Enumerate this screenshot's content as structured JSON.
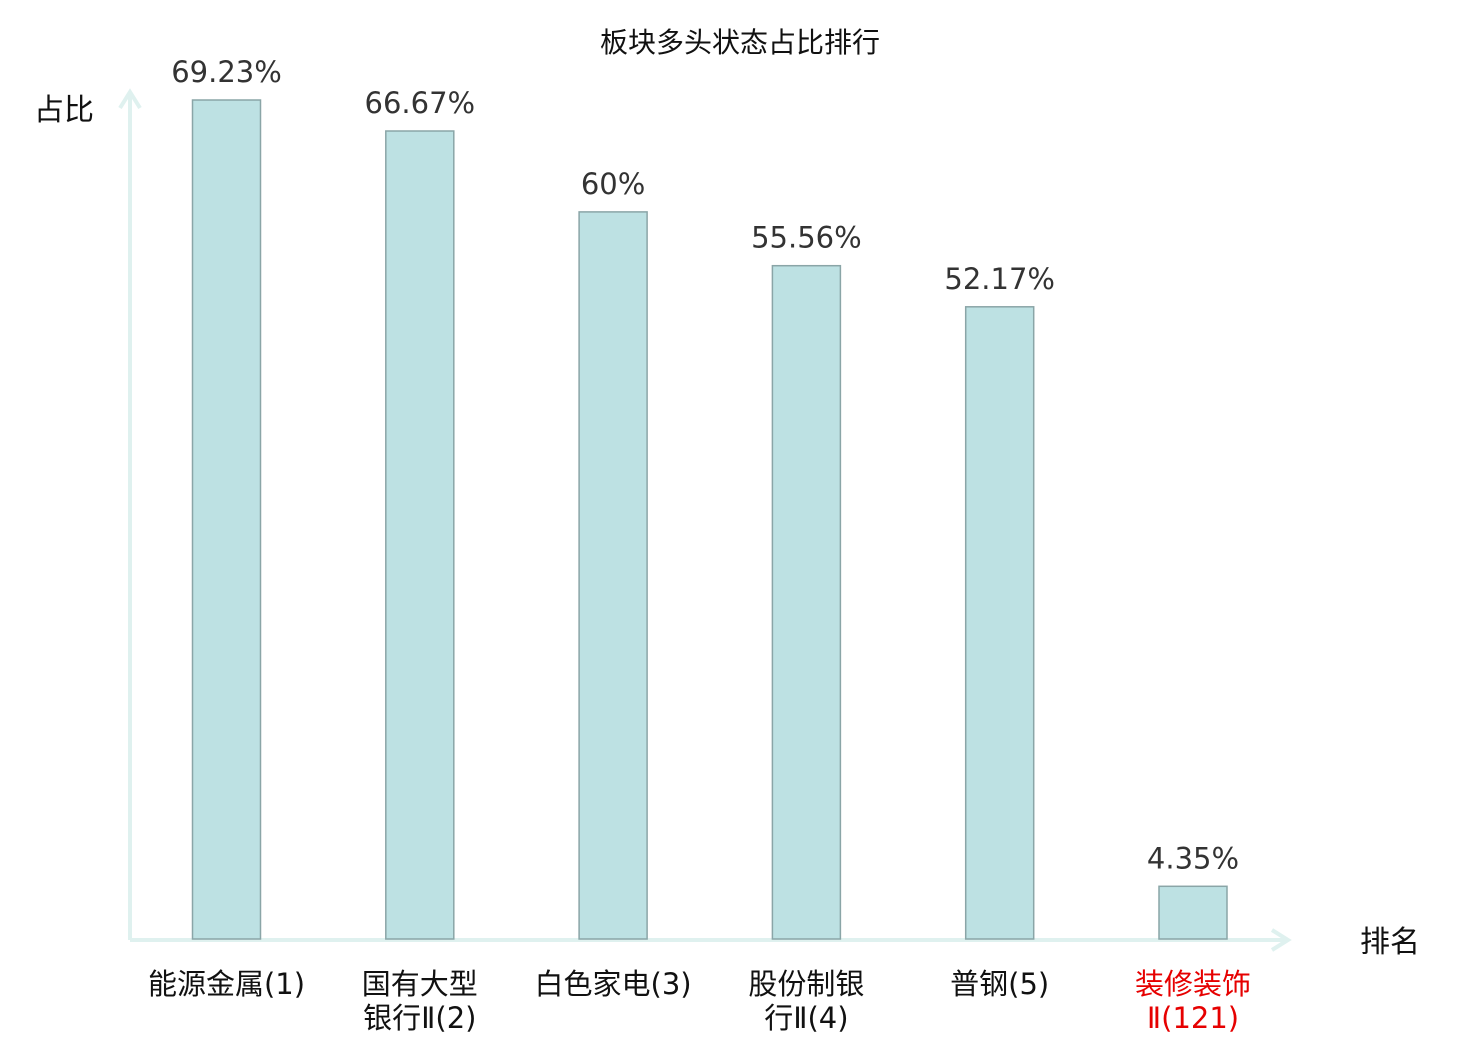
{
  "chart_data": {
    "type": "bar",
    "title": "板块多头状态占比排行",
    "ylabel": "占比",
    "xlabel": "排名",
    "ylim": [
      0,
      75
    ],
    "grid": false,
    "legend": "none",
    "categories": [
      {
        "name": "能源金属",
        "rank": "(1)",
        "lines": [
          "能源金属(1)"
        ],
        "highlight": false
      },
      {
        "name": "国有大型银行Ⅱ",
        "rank": "(2)",
        "lines": [
          "国有大型",
          "银行Ⅱ(2)"
        ],
        "highlight": false
      },
      {
        "name": "白色家电",
        "rank": "(3)",
        "lines": [
          "白色家电(3)"
        ],
        "highlight": false
      },
      {
        "name": "股份制银行Ⅱ",
        "rank": "(4)",
        "lines": [
          "股份制银",
          "行Ⅱ(4)"
        ],
        "highlight": false
      },
      {
        "name": "普钢",
        "rank": "(5)",
        "lines": [
          "普钢(5)"
        ],
        "highlight": false
      },
      {
        "name": "装修装饰Ⅱ",
        "rank": "(121)",
        "lines": [
          "装修装饰",
          "Ⅱ(121)"
        ],
        "highlight": true
      }
    ],
    "values": [
      69.23,
      66.67,
      60,
      55.56,
      52.17,
      4.35
    ],
    "value_labels": [
      "69.23%",
      "66.67%",
      "60%",
      "55.56%",
      "52.17%",
      "4.35%"
    ],
    "colors": {
      "bar_fill": "#bde1e3",
      "bar_stroke": "#8aa5a7",
      "axis": "#dff1ef",
      "highlight_text": "#e60000",
      "text": "#111111"
    }
  }
}
